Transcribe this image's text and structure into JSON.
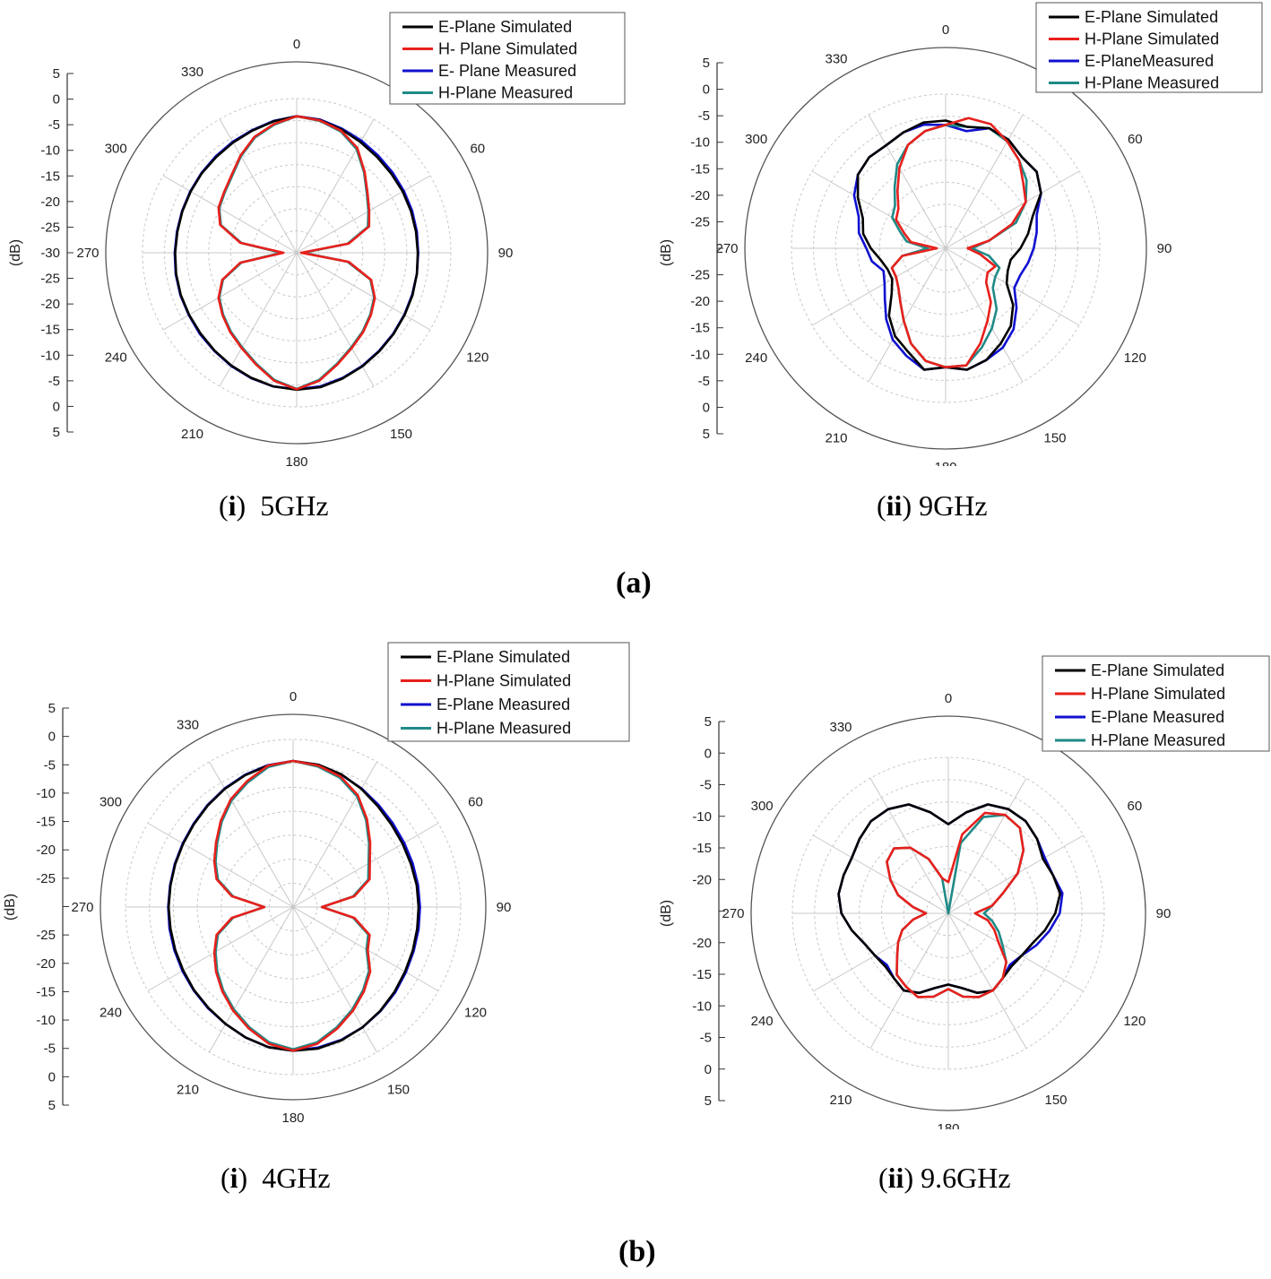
{
  "captions": {
    "group_a": "(a)",
    "group_b": "(b)",
    "a1": {
      "label": "i",
      "text": "5GHz"
    },
    "a2": {
      "label": "ii",
      "text": "9GHz"
    },
    "b1": {
      "label": "i",
      "text": "4GHz"
    },
    "b2": {
      "label": "ii",
      "text": "9.6GHz"
    }
  },
  "colors": {
    "e_sim": "#000000",
    "h_sim": "#e8201c",
    "e_meas": "#1010d0",
    "h_meas": "#1f8a86",
    "grid": "#c8c8c8",
    "frame": "#555555"
  },
  "chart_data": [
    {
      "type": "polar-line",
      "title": "",
      "ylabel": "(dB)",
      "r_range": [
        -30,
        5
      ],
      "r_ticks": [
        "5",
        "0",
        "-5",
        "-10",
        "-15",
        "-20",
        "-25",
        "-30",
        "-25",
        "-20",
        "-15",
        "-10",
        "-5",
        "0",
        "5"
      ],
      "angle_labels": [
        "0",
        "60",
        "90",
        "120",
        "150",
        "180",
        "210",
        "240",
        "270",
        "300",
        "330"
      ],
      "legend_placement": "top-right",
      "series": [
        {
          "name": "E-Plane Simulated",
          "r_db": [
            1,
            0.6,
            -0.2,
            -1,
            -1.6,
            -2,
            -2.2,
            -2.4,
            -2.5,
            -2.5,
            -2.3,
            -2,
            -1.7,
            -1.3,
            -0.8,
            -0.2,
            0.4,
            1,
            1.1,
            0.8,
            0.2,
            -0.4,
            -1,
            -1.5,
            -1.8,
            -2,
            -2.2,
            -2.4,
            -2.5,
            -2.4,
            -2.2,
            -1.9,
            -1.6,
            -1.1,
            -0.5,
            0.3
          ]
        },
        {
          "name": "H- Plane Simulated",
          "r_db": [
            1,
            0.5,
            -0.5,
            -2.5,
            -6,
            -9,
            -11,
            -12.5,
            -18,
            -29,
            -18,
            -12,
            -9.5,
            -8,
            -6.5,
            -5,
            -3,
            -0.5,
            1,
            -0.5,
            -3,
            -5,
            -6.5,
            -8,
            -9.5,
            -12,
            -17,
            -27,
            -17,
            -11.5,
            -9.5,
            -8.5,
            -7,
            -4.5,
            -2,
            -0.3
          ]
        },
        {
          "name": "E- Plane Measured",
          "r_db": [
            1,
            0.7,
            0,
            -0.6,
            -1.2,
            -1.6,
            -1.9,
            -2.1,
            -2.3,
            -2.4,
            -2.3,
            -2.1,
            -1.8,
            -1.4,
            -0.9,
            -0.3,
            0.3,
            0.8,
            1,
            0.8,
            0.3,
            -0.3,
            -0.9,
            -1.3,
            -1.7,
            -1.9,
            -2.1,
            -2.3,
            -2.4,
            -2.3,
            -2.1,
            -1.8,
            -1.4,
            -0.9,
            -0.4,
            0.4
          ]
        },
        {
          "name": "H-Plane Measured",
          "r_db": [
            1,
            0.4,
            -0.7,
            -2.8,
            -6.2,
            -9.2,
            -11.2,
            -12.8,
            -18.3,
            -28.5,
            -18.3,
            -12.2,
            -9.7,
            -8.2,
            -6.7,
            -5.2,
            -3.2,
            -0.7,
            0.9,
            -0.7,
            -3.2,
            -5.2,
            -6.7,
            -8.2,
            -9.7,
            -12.2,
            -17.3,
            -26.5,
            -17.3,
            -11.7,
            -9.7,
            -8.7,
            -7.2,
            -4.7,
            -2.2,
            -0.5
          ]
        }
      ]
    },
    {
      "type": "polar-line",
      "title": "",
      "ylabel": "(dB)",
      "r_range": [
        -30,
        5
      ],
      "r_ticks": [
        "5",
        "0",
        "-5",
        "-10",
        "-15",
        "-20",
        "-25",
        "",
        "-25",
        "-20",
        "-15",
        "-10",
        "-5",
        "0",
        "5"
      ],
      "angle_labels": [
        "0",
        "60",
        "90",
        "120",
        "150",
        "180",
        "210",
        "240",
        "270",
        "300",
        "330"
      ],
      "legend_placement": "top-right",
      "series": [
        {
          "name": "E-Plane Simulated",
          "r_db": [
            -1,
            -2,
            -1,
            -1.5,
            -3,
            -3,
            -5,
            -9,
            -11,
            -13,
            -15,
            -15,
            -14,
            -10,
            -7,
            -5,
            -3,
            -2,
            -3,
            -2,
            -5,
            -7,
            -10,
            -14,
            -16,
            -16,
            -15,
            -13,
            -11,
            -10,
            -7,
            -4,
            -3,
            -3,
            -2,
            -1
          ]
        },
        {
          "name": "H-Plane Simulated",
          "r_db": [
            -2,
            0,
            0,
            -2,
            -4,
            -7,
            -9,
            -14,
            -20,
            -25,
            -22,
            -18,
            -19,
            -18,
            -14,
            -11,
            -7,
            -3,
            -3,
            -4,
            -7,
            -11,
            -14,
            -16,
            -17,
            -17,
            -20,
            -28,
            -22,
            -20,
            -17,
            -16,
            -13,
            -9,
            -5,
            -3
          ]
        },
        {
          "name": "E-PlaneMeasured",
          "r_db": [
            -2,
            -3,
            -1,
            -1.5,
            -3,
            -3,
            -5,
            -8,
            -9,
            -10,
            -11,
            -12,
            -12,
            -9,
            -6,
            -4,
            -3,
            -2,
            -3,
            -2,
            -4,
            -6,
            -9,
            -12,
            -14,
            -15,
            -13,
            -12,
            -10,
            -9,
            -6,
            -4,
            -3,
            -3,
            -2,
            -1.5
          ]
        },
        {
          "name": "H-Plane Measured",
          "r_db": [
            -2,
            -2,
            -1,
            -2,
            -4,
            -6,
            -9,
            -13,
            -20,
            -24,
            -20,
            -17,
            -17,
            -16,
            -12,
            -9,
            -6,
            -3,
            -3,
            -4,
            -7,
            -11,
            -14,
            -16,
            -17,
            -17,
            -20,
            -26,
            -21,
            -19,
            -16,
            -15,
            -12,
            -8,
            -5,
            -3
          ]
        }
      ]
    },
    {
      "type": "polar-line",
      "title": "",
      "ylabel": "(dB)",
      "r_range": [
        -30,
        5
      ],
      "r_ticks": [
        "5",
        "0",
        "-5",
        "-10",
        "-15",
        "-20",
        "-25",
        "",
        "-25",
        "-20",
        "-15",
        "-10",
        "-5",
        "0",
        "5"
      ],
      "angle_labels": [
        "0",
        "60",
        "90",
        "120",
        "150",
        "180",
        "210",
        "240",
        "270",
        "300",
        "330"
      ],
      "legend_placement": "top-right",
      "series": [
        {
          "name": "E-Plane Simulated",
          "r_db": [
            0.5,
            0.2,
            -0.5,
            -1.5,
            -2.5,
            -3.2,
            -3.6,
            -3.8,
            -3.8,
            -3.8,
            -3.7,
            -3.4,
            -3,
            -2.4,
            -1.7,
            -1,
            -0.4,
            0,
            0,
            -0.3,
            -1,
            -1.8,
            -2.5,
            -3,
            -3.5,
            -3.8,
            -4,
            -4,
            -4,
            -3.8,
            -3.5,
            -3,
            -2.3,
            -1.5,
            -0.7,
            0
          ]
        },
        {
          "name": "H-Plane Simulated",
          "r_db": [
            0.5,
            0,
            -1,
            -3,
            -6,
            -9,
            -11.5,
            -13,
            -17,
            -24,
            -17,
            -13,
            -12,
            -9,
            -7,
            -5,
            -3,
            -1,
            0,
            -1,
            -3,
            -5,
            -7,
            -9,
            -11,
            -13,
            -17,
            -24,
            -17,
            -13,
            -11,
            -9,
            -6.5,
            -4,
            -2,
            0
          ]
        },
        {
          "name": "E-Plane Measured",
          "r_db": [
            0.5,
            0.1,
            -0.6,
            -1.4,
            -2.2,
            -2.8,
            -3.2,
            -3.4,
            -3.5,
            -3.5,
            -3.4,
            -3.2,
            -2.8,
            -2.2,
            -1.6,
            -1,
            -0.5,
            -0.2,
            0,
            -0.3,
            -1,
            -1.8,
            -2.4,
            -2.9,
            -3.3,
            -3.6,
            -3.8,
            -3.9,
            -3.9,
            -3.7,
            -3.4,
            -2.9,
            -2.2,
            -1.4,
            -0.6,
            0.1
          ]
        },
        {
          "name": "H-Plane Measured",
          "r_db": [
            0.5,
            -0.2,
            -1.3,
            -3.3,
            -6.3,
            -9.3,
            -11.8,
            -13.3,
            -17.3,
            -24,
            -17.3,
            -13.3,
            -12.3,
            -9.3,
            -7.3,
            -5.3,
            -3.3,
            -1.3,
            -0.3,
            -1.3,
            -3.3,
            -5.3,
            -7.3,
            -9.3,
            -11.3,
            -13.3,
            -17.3,
            -24,
            -17.3,
            -13.3,
            -11.3,
            -9.3,
            -6.8,
            -4.3,
            -2.3,
            -0.3
          ]
        }
      ]
    },
    {
      "type": "polar-line",
      "title": "",
      "ylabel": "(dB)",
      "r_range": [
        -30,
        5
      ],
      "r_ticks": [
        "5",
        "0",
        "-5",
        "-10",
        "-15",
        "-20",
        "",
        "-20",
        "-15",
        "-10",
        "-5",
        "0",
        "5"
      ],
      "angle_labels": [
        "0",
        "60",
        "90",
        "120",
        "150",
        "180",
        "210",
        "240",
        "270",
        "300",
        "330"
      ],
      "legend_placement": "top-right",
      "series": [
        {
          "name": "E-Plane Simulated",
          "r_db": [
            -10,
            -7,
            -4,
            -3,
            -3,
            -4,
            -5.5,
            -5,
            -4.5,
            -6,
            -8,
            -10,
            -11,
            -11.5,
            -11,
            -10,
            -11,
            -13,
            -14,
            -13,
            -11,
            -10,
            -11,
            -11.5,
            -11,
            -10,
            -8,
            -6,
            -5,
            -5,
            -5,
            -4,
            -3,
            -3,
            -4,
            -7
          ]
        },
        {
          "name": "H-Plane Simulated",
          "r_db": [
            -23,
            -12,
            -6,
            -4.5,
            -5,
            -8,
            -12,
            -17,
            -20,
            -24,
            -21,
            -19,
            -17,
            -13,
            -11,
            -10,
            -10,
            -11,
            -13,
            -11,
            -10,
            -11,
            -12,
            -15,
            -17,
            -19,
            -22,
            -25,
            -22,
            -18,
            -15,
            -12,
            -11,
            -13,
            -17,
            -22
          ]
        },
        {
          "name": "E-Plane Measured",
          "r_db": [
            -10,
            -7,
            -4,
            -3,
            -3,
            -4,
            -5,
            -5,
            -4,
            -5,
            -7,
            -9,
            -11,
            -12,
            -11,
            -10,
            -11,
            -13,
            -14,
            -13,
            -11,
            -10,
            -11,
            -12,
            -11,
            -10,
            -8,
            -6,
            -5,
            -5,
            -5,
            -4,
            -3,
            -3,
            -4,
            -7
          ]
        },
        {
          "name": "H-Plane Measured",
          "r_db": [
            -30,
            -14,
            -7,
            -4.5,
            -5,
            -8,
            -12,
            -17,
            -20,
            -22,
            -20,
            -18,
            -16,
            -13,
            -11,
            -10,
            -10,
            -11,
            -13,
            -11,
            -10,
            -11,
            -12,
            -15,
            -17,
            -19,
            -22,
            -25,
            -22,
            -18,
            -15,
            -12,
            -11,
            -13,
            -17,
            -22
          ]
        }
      ]
    }
  ]
}
